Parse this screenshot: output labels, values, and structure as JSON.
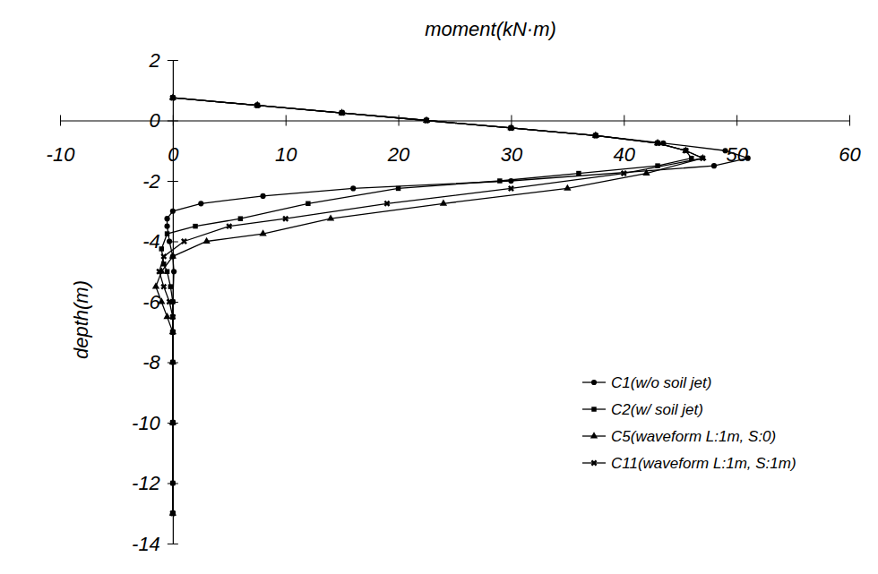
{
  "chart_data": {
    "type": "line",
    "x_label": "moment(kN·m)",
    "y_label": "depth(m)",
    "xlim": [
      -10,
      60
    ],
    "xticks": [
      -10,
      0,
      10,
      20,
      30,
      40,
      50,
      60
    ],
    "ylim": [
      -14,
      2
    ],
    "yticks": [
      -14,
      -12,
      -10,
      -8,
      -6,
      -4,
      -2,
      0,
      2
    ],
    "grid": false,
    "legend": "lower right",
    "series": [
      {
        "name": "C1(w/o soil jet)",
        "color": "#000000",
        "marker": "circle",
        "line_style": "solid",
        "x": [
          0,
          7.5,
          15,
          22.5,
          30,
          37.5,
          43.5,
          49,
          51,
          48,
          30,
          16,
          8,
          2.5,
          0,
          -0.5,
          -0.5,
          -0.3,
          0,
          0.1,
          0,
          0,
          0,
          0,
          0,
          0
        ],
        "values": [
          0.75,
          0.5,
          0.25,
          0,
          -0.25,
          -0.5,
          -0.75,
          -1.0,
          -1.25,
          -1.5,
          -2.0,
          -2.25,
          -2.5,
          -2.75,
          -3.0,
          -3.25,
          -3.5,
          -4.0,
          -4.5,
          -5.0,
          -6.0,
          -7.0,
          -8.0,
          -10.0,
          -12.0,
          -13.0
        ]
      },
      {
        "name": "C2(w/ soil jet)",
        "color": "#000000",
        "marker": "square",
        "line_style": "solid",
        "x": [
          0,
          7.5,
          15,
          22.5,
          30,
          37.5,
          43,
          45.5,
          46,
          43,
          36,
          29,
          20,
          12,
          6,
          2,
          -0.5,
          -1,
          -0.8,
          -0.5,
          -0.2,
          0,
          0,
          0,
          0,
          0,
          0,
          0
        ],
        "values": [
          0.75,
          0.5,
          0.25,
          0,
          -0.25,
          -0.5,
          -0.75,
          -1.0,
          -1.25,
          -1.5,
          -1.75,
          -2.0,
          -2.25,
          -2.75,
          -3.25,
          -3.5,
          -3.75,
          -4.25,
          -4.75,
          -5.0,
          -5.5,
          -6.0,
          -6.5,
          -7.0,
          -8.0,
          -10.0,
          -12.0,
          -13.0
        ]
      },
      {
        "name": "C5(waveform L:1m, S:0)",
        "color": "#000000",
        "marker": "triangle",
        "line_style": "solid",
        "x": [
          0,
          7.5,
          15,
          22.5,
          30,
          37.5,
          43,
          45.5,
          47,
          42,
          35,
          24,
          14,
          8,
          3,
          0,
          -1,
          -1.5,
          -1,
          -0.5,
          0,
          0,
          0,
          0
        ],
        "values": [
          0.75,
          0.5,
          0.25,
          0,
          -0.25,
          -0.5,
          -0.75,
          -1.0,
          -1.25,
          -1.75,
          -2.25,
          -2.75,
          -3.25,
          -3.75,
          -4.0,
          -4.5,
          -5.0,
          -5.5,
          -6.0,
          -6.5,
          -7.0,
          -8.0,
          -10.0,
          -13.0
        ]
      },
      {
        "name": "C11(waveform L:1m, S:1m)",
        "color": "#000000",
        "marker": "x",
        "line_style": "solid",
        "x": [
          0,
          7.5,
          15,
          22.5,
          30,
          37.5,
          43,
          45.5,
          47,
          40,
          30,
          19,
          10,
          5,
          1,
          -0.8,
          -1.2,
          -0.8,
          -0.3,
          0,
          0,
          0,
          0
        ],
        "values": [
          0.75,
          0.5,
          0.25,
          0,
          -0.25,
          -0.5,
          -0.75,
          -1.0,
          -1.25,
          -1.75,
          -2.25,
          -2.75,
          -3.25,
          -3.5,
          -4.0,
          -4.5,
          -5.0,
          -5.5,
          -6.0,
          -6.5,
          -7.0,
          -10.0,
          -13.0
        ]
      }
    ]
  }
}
